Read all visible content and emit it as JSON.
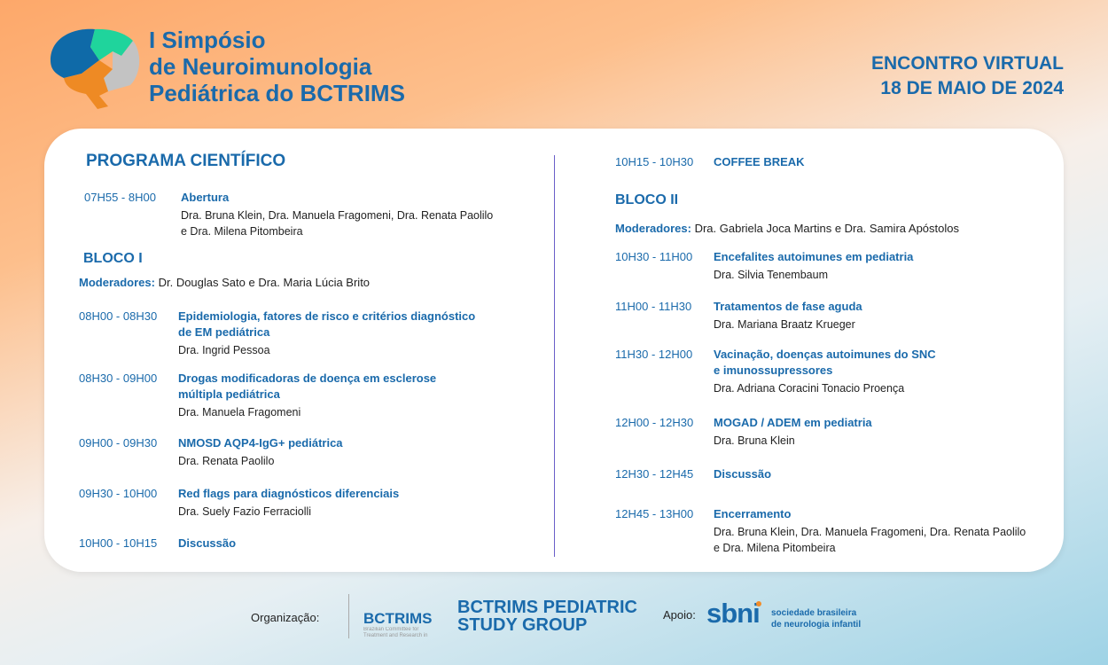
{
  "header": {
    "title_lines": [
      "I Simpósio",
      "de Neuroimunologia",
      "Pediátrica do BCTRIMS"
    ],
    "event_lines": [
      "ENCONTRO VIRTUAL",
      "18 DE MAIO DE 2024"
    ]
  },
  "program": {
    "heading": "PROGRAMA CIENTÍFICO",
    "left": [
      {
        "time": "07H55 - 8H00",
        "title": [
          "Abertura"
        ],
        "speakers": [
          "Dra. Bruna Klein, Dra. Manuela Fragomeni, Dra. Renata Paolilo",
          "e Dra. Milena Pitombeira"
        ]
      },
      {
        "time": "08H00 - 08H30",
        "title": [
          "Epidemiologia, fatores de risco e critérios diagnóstico",
          "de EM pediátrica"
        ],
        "speakers": [
          "Dra. Ingrid Pessoa"
        ]
      },
      {
        "time": "08H30 - 09H00",
        "title": [
          "Drogas modificadoras de doença em esclerose",
          "múltipla pediátrica"
        ],
        "speakers": [
          "Dra. Manuela Fragomeni"
        ]
      },
      {
        "time": "09H00 - 09H30",
        "title": [
          "NMOSD AQP4-IgG+ pediátrica"
        ],
        "speakers": [
          "Dra. Renata Paolilo"
        ]
      },
      {
        "time": "09H30 - 10H00",
        "title": [
          "Red flags para diagnósticos diferenciais"
        ],
        "speakers": [
          "Dra. Suely Fazio Ferraciolli"
        ]
      },
      {
        "time": "10H00 - 10H15",
        "title": [
          "Discussão"
        ],
        "speakers": []
      }
    ],
    "bloco1": {
      "label": "BLOCO I",
      "mod_label": "Moderadores:",
      "mod_names": "Dr. Douglas Sato e Dra. Maria Lúcia Brito"
    },
    "bloco2": {
      "label": "BLOCO II",
      "mod_label": "Moderadores:",
      "mod_names": "Dra. Gabriela Joca Martins e Dra. Samira Apóstolos"
    },
    "right": [
      {
        "time": "10H15 - 10H30",
        "title": [
          "COFFEE BREAK"
        ],
        "speakers": []
      },
      {
        "time": "10H30 - 11H00",
        "title": [
          "Encefalites autoimunes em pediatria"
        ],
        "speakers": [
          "Dra. Silvia Tenembaum"
        ]
      },
      {
        "time": "11H00 - 11H30",
        "title": [
          "Tratamentos de fase aguda"
        ],
        "speakers": [
          "Dra. Mariana Braatz Krueger"
        ]
      },
      {
        "time": "11H30 - 12H00",
        "title": [
          "Vacinação, doenças autoimunes do SNC",
          "e imunossupressores"
        ],
        "speakers": [
          "Dra. Adriana Coracini Tonacio Proença"
        ]
      },
      {
        "time": "12H00 - 12H30",
        "title": [
          "MOGAD / ADEM em pediatria"
        ],
        "speakers": [
          "Dra. Bruna Klein"
        ]
      },
      {
        "time": "12H30 - 12H45",
        "title": [
          "Discussão"
        ],
        "speakers": []
      },
      {
        "time": "12H45 - 13H00",
        "title": [
          "Encerramento"
        ],
        "speakers": [
          "Dra. Bruna Klein, Dra. Manuela Fragomeni, Dra. Renata Paolilo",
          "e Dra. Milena Pitombeira"
        ]
      }
    ]
  },
  "footer": {
    "org_label": "Organização:",
    "bctrims_logo": "BCTRIMS",
    "bctrims_sub": "Brazilian Committee for Treatment and Research in Multiple Sclerosis",
    "study_group": [
      "BCTRIMS PEDIATRIC",
      "STUDY GROUP"
    ],
    "support_label": "Apoio:",
    "sbni_logo": "sbni",
    "sbni_text": [
      "sociedade brasileira",
      "de neurologia infantil"
    ]
  }
}
